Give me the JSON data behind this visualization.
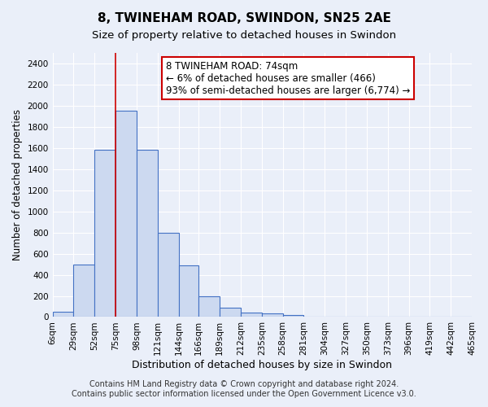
{
  "title": "8, TWINEHAM ROAD, SWINDON, SN25 2AE",
  "subtitle": "Size of property relative to detached houses in Swindon",
  "xlabel": "Distribution of detached houses by size in Swindon",
  "ylabel": "Number of detached properties",
  "bin_edges": [
    6,
    29,
    52,
    75,
    98,
    121,
    144,
    166,
    189,
    212,
    235,
    258,
    281,
    304,
    327,
    350,
    373,
    396,
    419,
    442,
    465
  ],
  "bar_heights": [
    50,
    500,
    1580,
    1950,
    1580,
    800,
    490,
    200,
    90,
    40,
    35,
    20,
    0,
    0,
    0,
    0,
    0,
    0,
    0,
    0
  ],
  "bar_color": "#ccd9f0",
  "bar_edgecolor": "#4472c4",
  "bar_linewidth": 0.8,
  "property_line_x": 75,
  "property_line_color": "#cc0000",
  "annotation_text": "8 TWINEHAM ROAD: 74sqm\n← 6% of detached houses are smaller (466)\n93% of semi-detached houses are larger (6,774) →",
  "annotation_box_color": "#ffffff",
  "annotation_box_edgecolor": "#cc0000",
  "ylim": [
    0,
    2500
  ],
  "yticks": [
    0,
    200,
    400,
    600,
    800,
    1000,
    1200,
    1400,
    1600,
    1800,
    2000,
    2200,
    2400
  ],
  "background_color": "#eaeff9",
  "plot_background_color": "#eaeff9",
  "footer_line1": "Contains HM Land Registry data © Crown copyright and database right 2024.",
  "footer_line2": "Contains public sector information licensed under the Open Government Licence v3.0.",
  "title_fontsize": 11,
  "subtitle_fontsize": 9.5,
  "xlabel_fontsize": 9,
  "ylabel_fontsize": 8.5,
  "tick_fontsize": 7.5,
  "annotation_fontsize": 8.5,
  "footer_fontsize": 7
}
